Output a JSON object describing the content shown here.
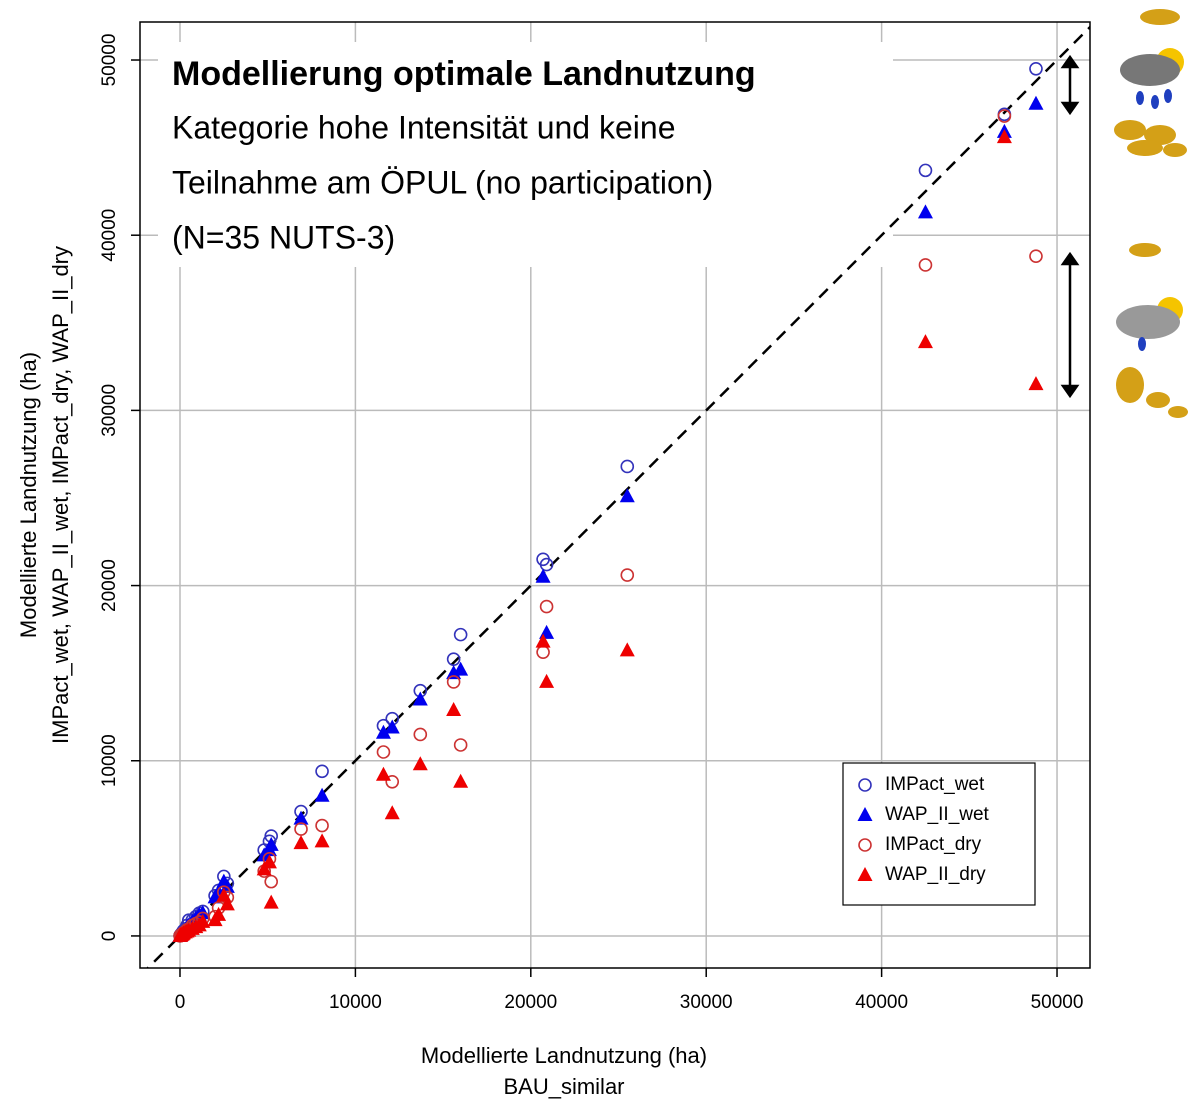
{
  "chart_data": {
    "type": "scatter",
    "title": "Modellierung optimale Landnutzung",
    "subtitle": [
      "Kategorie hohe Intensität und keine",
      "Teilnahme am ÖPUL (no participation)",
      "(N=35 NUTS-3)"
    ],
    "x_label": [
      "Modellierte Landnutzung (ha)",
      "BAU_similar"
    ],
    "y_label": [
      "Modellierte Landnutzung (ha)",
      "IMPact_wet, WAP_II_wet, IMPact_dry, WAP_II_dry"
    ],
    "x": [
      48800,
      47000,
      42500,
      25500,
      20700,
      20900,
      16000,
      15600,
      13700,
      12100,
      11600,
      8100,
      6900,
      5200,
      5100,
      4800,
      2700,
      2500,
      2200,
      2000,
      1300,
      1100,
      900,
      700,
      500,
      400,
      300,
      200,
      150,
      100,
      50,
      30,
      20,
      10,
      5
    ],
    "series": [
      {
        "name": "IMPact_wet",
        "color": "#3333bb",
        "marker": "open-circle",
        "values": [
          49500,
          46900,
          43700,
          26800,
          21500,
          21200,
          17200,
          15800,
          14000,
          12400,
          12000,
          9400,
          7100,
          5700,
          5400,
          4900,
          3000,
          3400,
          2600,
          2300,
          1400,
          1300,
          1100,
          900,
          900,
          600,
          400,
          300,
          200,
          150,
          80,
          50,
          30,
          20,
          10
        ]
      },
      {
        "name": "WAP_II_wet",
        "color": "#0000ee",
        "marker": "triangle",
        "values": [
          47500,
          45900,
          41300,
          25100,
          20500,
          17300,
          15200,
          15000,
          13500,
          11900,
          11600,
          8000,
          6700,
          5200,
          4900,
          4600,
          2800,
          3100,
          2500,
          2200,
          1300,
          1200,
          1000,
          800,
          600,
          500,
          350,
          250,
          180,
          120,
          60,
          40,
          25,
          15,
          8
        ]
      },
      {
        "name": "IMPact_dry",
        "color": "#cc3333",
        "marker": "open-circle",
        "values": [
          38800,
          46800,
          38300,
          20600,
          16200,
          18800,
          10900,
          14500,
          11500,
          8800,
          10500,
          6300,
          6100,
          3100,
          4400,
          3700,
          2200,
          2500,
          1600,
          1100,
          1000,
          800,
          700,
          600,
          400,
          350,
          250,
          180,
          130,
          90,
          45,
          28,
          18,
          9,
          4
        ]
      },
      {
        "name": "WAP_II_dry",
        "color": "#ee0000",
        "marker": "triangle",
        "values": [
          31500,
          45600,
          33900,
          16300,
          16800,
          14500,
          8800,
          12900,
          9800,
          7000,
          9200,
          5400,
          5300,
          1900,
          4200,
          3800,
          1800,
          2300,
          1200,
          900,
          800,
          600,
          500,
          400,
          300,
          250,
          200,
          150,
          100,
          70,
          40,
          25,
          15,
          8,
          4
        ]
      }
    ],
    "xlim": [
      -2280,
      51880
    ],
    "ylim": [
      -1830,
      52170
    ],
    "xticks": [
      0,
      10000,
      20000,
      30000,
      40000,
      50000
    ],
    "yticks": [
      0,
      10000,
      20000,
      30000,
      40000,
      50000
    ],
    "grid": true,
    "diagonal": true,
    "legend": "bottom-right"
  }
}
